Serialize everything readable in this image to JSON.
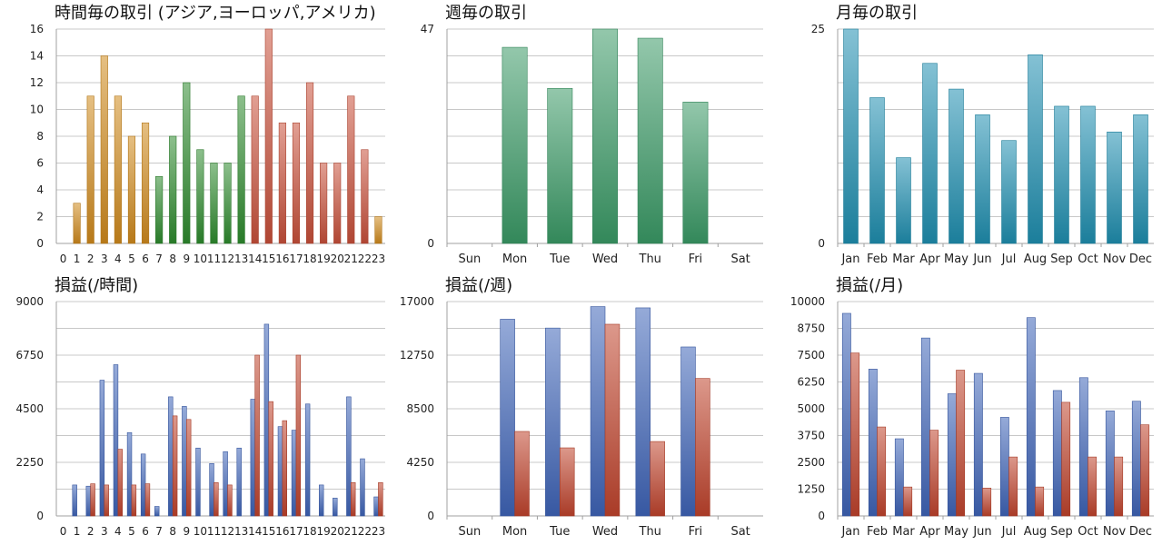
{
  "charts": [
    {
      "type": "bar",
      "title": "時間毎の取引 (アジア,ヨーロッパ,アメリカ)",
      "categories": [
        "0",
        "1",
        "2",
        "3",
        "4",
        "5",
        "6",
        "7",
        "8",
        "9",
        "10",
        "11",
        "12",
        "13",
        "14",
        "15",
        "16",
        "17",
        "18",
        "19",
        "20",
        "21",
        "22",
        "23"
      ],
      "series": [
        {
          "values": [
            0,
            3,
            11,
            14,
            11,
            8,
            9,
            5,
            8,
            12,
            7,
            6,
            6,
            11,
            11,
            16,
            9,
            9,
            12,
            6,
            6,
            11,
            7,
            2
          ]
        }
      ],
      "colors": [
        "#d08a1c",
        "#d08a1c",
        "#d08a1c",
        "#d08a1c",
        "#d08a1c",
        "#d08a1c",
        "#d08a1c",
        "#2e8b2e",
        "#2e8b2e",
        "#2e8b2e",
        "#2e8b2e",
        "#2e8b2e",
        "#2e8b2e",
        "#2e8b2e",
        "#c8503a",
        "#c8503a",
        "#c8503a",
        "#c8503a",
        "#c8503a",
        "#c8503a",
        "#c8503a",
        "#c8503a",
        "#c8503a",
        "#d08a1c"
      ],
      "yticks": [
        0,
        2,
        4,
        6,
        8,
        10,
        12,
        14,
        16
      ],
      "ylim": [
        0,
        16
      ],
      "grid": true
    },
    {
      "type": "bar",
      "title": "週毎の取引",
      "categories": [
        "Sun",
        "Mon",
        "Tue",
        "Wed",
        "Thu",
        "Fri",
        "Sat"
      ],
      "series": [
        {
          "values": [
            0,
            43,
            34,
            47,
            45,
            31,
            0
          ]
        }
      ],
      "colors": [
        "#3a9a66",
        "#3a9a66",
        "#3a9a66",
        "#3a9a66",
        "#3a9a66",
        "#3a9a66",
        "#3a9a66"
      ],
      "yticks": [
        0,
        47
      ],
      "ylim": [
        0,
        47
      ],
      "grid": true
    },
    {
      "type": "bar",
      "title": "月毎の取引",
      "categories": [
        "Jan",
        "Feb",
        "Mar",
        "Apr",
        "May",
        "Jun",
        "Jul",
        "Aug",
        "Sep",
        "Oct",
        "Nov",
        "Dec"
      ],
      "series": [
        {
          "values": [
            25,
            17,
            10,
            21,
            18,
            15,
            12,
            22,
            16,
            16,
            13,
            15
          ]
        }
      ],
      "colors": [
        "#1f8fb0",
        "#1f8fb0",
        "#1f8fb0",
        "#1f8fb0",
        "#1f8fb0",
        "#1f8fb0",
        "#1f8fb0",
        "#1f8fb0",
        "#1f8fb0",
        "#1f8fb0",
        "#1f8fb0",
        "#1f8fb0"
      ],
      "yticks": [
        0,
        25
      ],
      "ylim": [
        0,
        25
      ],
      "grid": true
    },
    {
      "type": "bar",
      "title": "損益(/時間)",
      "categories": [
        "0",
        "1",
        "2",
        "3",
        "4",
        "5",
        "6",
        "7",
        "8",
        "9",
        "10",
        "11",
        "12",
        "13",
        "14",
        "15",
        "16",
        "17",
        "18",
        "19",
        "20",
        "21",
        "22",
        "23"
      ],
      "series": [
        {
          "values": [
            0,
            1300,
            1250,
            5700,
            6350,
            3500,
            2600,
            400,
            5000,
            4600,
            2850,
            2200,
            2700,
            2850,
            4900,
            8050,
            3750,
            3600,
            4700,
            1300,
            750,
            5000,
            2400,
            800
          ],
          "color": "#3f64b8"
        },
        {
          "values": [
            0,
            0,
            1350,
            1300,
            2800,
            1300,
            1350,
            0,
            4200,
            4050,
            0,
            1400,
            1300,
            0,
            6750,
            4800,
            4000,
            6750,
            0,
            0,
            0,
            1400,
            0,
            1400
          ],
          "color": "#c0432c"
        }
      ],
      "yticks": [
        0,
        2250,
        4500,
        6750,
        9000
      ],
      "ylim": [
        0,
        9000
      ],
      "grid": true
    },
    {
      "type": "bar",
      "title": "損益(/週)",
      "categories": [
        "Sun",
        "Mon",
        "Tue",
        "Wed",
        "Thu",
        "Fri",
        "Sat"
      ],
      "series": [
        {
          "values": [
            0,
            15600,
            14900,
            16600,
            16500,
            13400,
            0
          ],
          "color": "#3f64b8"
        },
        {
          "values": [
            0,
            6700,
            5400,
            15200,
            5900,
            10900,
            0
          ],
          "color": "#c0432c"
        }
      ],
      "yticks": [
        0,
        4250,
        8500,
        12750,
        17000
      ],
      "ylim": [
        0,
        17000
      ],
      "grid": true
    },
    {
      "type": "bar",
      "title": "損益(/月)",
      "categories": [
        "Jan",
        "Feb",
        "Mar",
        "Apr",
        "May",
        "Jun",
        "Jul",
        "Aug",
        "Sep",
        "Oct",
        "Nov",
        "Dec"
      ],
      "series": [
        {
          "values": [
            9450,
            6850,
            3600,
            8300,
            5700,
            6650,
            4600,
            9250,
            5850,
            6450,
            4900,
            5350
          ],
          "color": "#3f64b8"
        },
        {
          "values": [
            7600,
            4150,
            1350,
            4000,
            6800,
            1300,
            2750,
            1350,
            5300,
            2750,
            2750,
            4250
          ],
          "color": "#c0432c"
        }
      ],
      "yticks": [
        0,
        1250,
        2500,
        3750,
        5000,
        6250,
        7500,
        8750,
        10000
      ],
      "ylim": [
        0,
        10000
      ],
      "grid": true
    }
  ]
}
